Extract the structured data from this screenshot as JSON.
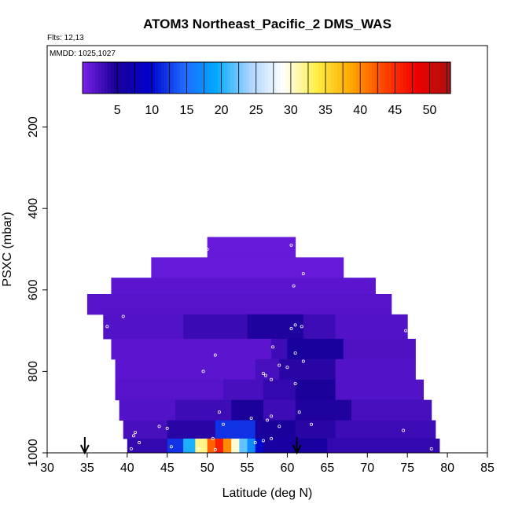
{
  "chart_data": {
    "type": "heatmap",
    "title": "ATOM3 Northeast_Pacific_2 DMS_WAS",
    "flights_label": "Flts: 12,13",
    "dates_label": "MMDD: 1025,1027",
    "xlabel": "Latitude (deg N)",
    "ylabel": "PSXC (mbar)",
    "xlim": [
      30,
      85
    ],
    "ylim": [
      1000,
      0
    ],
    "x_ticks": [
      30,
      35,
      40,
      45,
      50,
      55,
      60,
      65,
      70,
      75,
      80,
      85
    ],
    "y_ticks": [
      200,
      400,
      600,
      800,
      1000
    ],
    "colorbar": {
      "range": [
        0,
        53
      ],
      "ticks": [
        5,
        10,
        15,
        20,
        25,
        30,
        35,
        40,
        45,
        50
      ],
      "colors": [
        "#7a1fe8",
        "#1a0099",
        "#0000cc",
        "#1e66ff",
        "#00aaff",
        "#aad4ff",
        "#ffffff",
        "#ffee44",
        "#ffaa00",
        "#ff4400",
        "#ee0000",
        "#aa1111"
      ]
    },
    "arrows_latitude": [
      34.7,
      61.2
    ],
    "bands": [
      {
        "p": [
          470,
          520
        ],
        "lat": [
          50,
          61
        ],
        "segs": [
          [
            50,
            61,
            1
          ]
        ]
      },
      {
        "p": [
          520,
          570
        ],
        "lat": [
          43,
          67
        ],
        "segs": [
          [
            43,
            67,
            1
          ]
        ]
      },
      {
        "p": [
          570,
          610
        ],
        "lat": [
          38,
          71
        ],
        "segs": [
          [
            38,
            71,
            1.5
          ]
        ]
      },
      {
        "p": [
          610,
          660
        ],
        "lat": [
          35,
          73
        ],
        "segs": [
          [
            35,
            73,
            1.8
          ]
        ]
      },
      {
        "p": [
          660,
          720
        ],
        "lat": [
          37,
          75
        ],
        "segs": [
          [
            37,
            47,
            2
          ],
          [
            47,
            55,
            3.2
          ],
          [
            55,
            62,
            4.5
          ],
          [
            62,
            66,
            3
          ],
          [
            66,
            75,
            2
          ]
        ]
      },
      {
        "p": [
          720,
          770
        ],
        "lat": [
          38,
          76
        ],
        "segs": [
          [
            38,
            58,
            1.5
          ],
          [
            58,
            60,
            3
          ],
          [
            60,
            67,
            5.2
          ],
          [
            67,
            76,
            2.2
          ]
        ]
      },
      {
        "p": [
          770,
          820
        ],
        "lat": [
          38.5,
          76
        ],
        "segs": [
          [
            38.5,
            56,
            1.5
          ],
          [
            56,
            59,
            2.5
          ],
          [
            59,
            66,
            4
          ],
          [
            66,
            76,
            2
          ]
        ]
      },
      {
        "p": [
          820,
          870
        ],
        "lat": [
          38.5,
          77
        ],
        "segs": [
          [
            38.5,
            52,
            1.8
          ],
          [
            52,
            57,
            2.5
          ],
          [
            57,
            61,
            3.5
          ],
          [
            61,
            66,
            4.8
          ],
          [
            66,
            77,
            2
          ]
        ]
      },
      {
        "p": [
          870,
          920
        ],
        "lat": [
          39,
          78
        ],
        "segs": [
          [
            39,
            46,
            2
          ],
          [
            46,
            53,
            3
          ],
          [
            53,
            57,
            4.8
          ],
          [
            57,
            61,
            3
          ],
          [
            61,
            68,
            4.5
          ],
          [
            68,
            78,
            2.5
          ]
        ]
      },
      {
        "p": [
          920,
          965
        ],
        "lat": [
          39.5,
          78.5
        ],
        "segs": [
          [
            39.5,
            45,
            2.5
          ],
          [
            45,
            51,
            4
          ],
          [
            51,
            56,
            12
          ],
          [
            56,
            61,
            5
          ],
          [
            61,
            66,
            4
          ],
          [
            66,
            78.5,
            3
          ]
        ]
      },
      {
        "p": [
          965,
          1000
        ],
        "lat": [
          40,
          79
        ],
        "segs": [
          [
            40,
            45,
            3.5
          ],
          [
            45,
            47,
            12
          ],
          [
            47,
            48.5,
            20
          ],
          [
            48.5,
            50,
            32
          ],
          [
            50,
            51,
            42
          ],
          [
            51,
            52,
            46
          ],
          [
            52,
            53,
            40
          ],
          [
            53,
            54,
            30
          ],
          [
            54,
            55,
            22
          ],
          [
            55,
            56,
            17
          ],
          [
            56,
            57,
            10
          ],
          [
            57,
            65,
            5.5
          ],
          [
            65,
            79,
            3.5
          ]
        ]
      }
    ],
    "obs_points": [
      [
        50.0,
        500
      ],
      [
        60.5,
        490
      ],
      [
        62.0,
        560
      ],
      [
        60.8,
        590
      ],
      [
        39.5,
        665
      ],
      [
        37.5,
        690
      ],
      [
        61.0,
        686
      ],
      [
        61.8,
        690
      ],
      [
        60.5,
        695
      ],
      [
        74.8,
        700
      ],
      [
        58.2,
        740
      ],
      [
        61.0,
        755
      ],
      [
        62.0,
        775
      ],
      [
        51.0,
        760
      ],
      [
        59.0,
        785
      ],
      [
        60.0,
        790
      ],
      [
        49.5,
        800
      ],
      [
        57.0,
        805
      ],
      [
        57.3,
        810
      ],
      [
        58.0,
        820
      ],
      [
        61.0,
        830
      ],
      [
        51.5,
        900
      ],
      [
        61.5,
        900
      ],
      [
        55.5,
        915
      ],
      [
        58.0,
        910
      ],
      [
        57.5,
        920
      ],
      [
        52.0,
        930
      ],
      [
        63.0,
        930
      ],
      [
        44.0,
        935
      ],
      [
        45.0,
        940
      ],
      [
        59.0,
        935
      ],
      [
        41.0,
        950
      ],
      [
        40.8,
        958
      ],
      [
        50.7,
        965
      ],
      [
        41.5,
        975
      ],
      [
        45.5,
        985
      ],
      [
        49.0,
        990
      ],
      [
        51.0,
        992
      ],
      [
        56.0,
        975
      ],
      [
        57.0,
        970
      ],
      [
        58.0,
        965
      ],
      [
        78.0,
        990
      ],
      [
        74.5,
        945
      ],
      [
        40.5,
        990
      ]
    ]
  }
}
